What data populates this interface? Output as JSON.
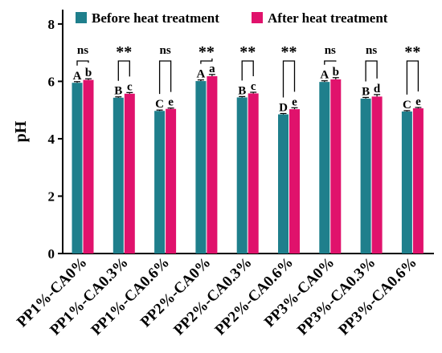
{
  "chart_data": {
    "type": "bar",
    "ylabel": "pH",
    "xlabel": "",
    "ylim": [
      0,
      8.5
    ],
    "yticks": [
      0,
      2,
      4,
      6,
      8
    ],
    "legend_position": "top",
    "categories": [
      "PP1%-CA0%",
      "PP1%-CA0.3%",
      "PP1%-CA0.6%",
      "PP2%-CA0%",
      "PP2%-CA0.3%",
      "PP2%-CA0.6%",
      "PP3%-CA0%",
      "PP3%-CA0.3%",
      "PP3%-CA0.6%"
    ],
    "series": [
      {
        "name": "Before heat treatment",
        "color": "#1f7f8c",
        "values": [
          5.95,
          5.43,
          4.97,
          6.01,
          5.44,
          4.85,
          5.98,
          5.4,
          4.95
        ],
        "errors": [
          0.04,
          0.03,
          0.03,
          0.04,
          0.03,
          0.03,
          0.04,
          0.04,
          0.03
        ],
        "letters": [
          "A",
          "B",
          "C",
          "A",
          "B",
          "D",
          "A",
          "B",
          "C"
        ]
      },
      {
        "name": "After heat treatment",
        "color": "#e0126c",
        "values": [
          6.05,
          5.57,
          5.04,
          6.18,
          5.58,
          5.03,
          6.07,
          5.47,
          5.06
        ],
        "errors": [
          0.04,
          0.04,
          0.03,
          0.06,
          0.04,
          0.05,
          0.06,
          0.07,
          0.03
        ],
        "letters": [
          "b",
          "c",
          "e",
          "a",
          "c",
          "e",
          "b",
          "d",
          "e"
        ]
      }
    ],
    "significance": [
      "ns",
      "**",
      "ns",
      "**",
      "**",
      "**",
      "ns",
      "ns",
      "**"
    ]
  }
}
